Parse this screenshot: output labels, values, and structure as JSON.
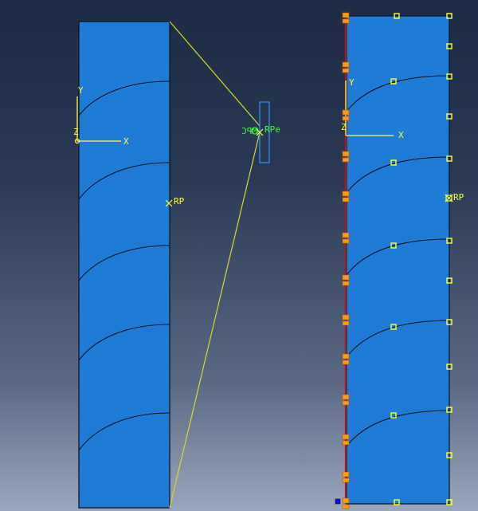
{
  "viewport": {
    "colors": {
      "part_fill": "#1f7bd6",
      "part_edge": "#0a0f1a",
      "triad": "#ffff33",
      "connector": "#d8d82a",
      "constraint": "#33ff33",
      "bc_marker": "#ff9a1a",
      "fixed_edge": "#b01818",
      "coupling_node": "#ffff33",
      "wire": "#3c8cff"
    },
    "left_part": {
      "triad": {
        "y_label": "Y",
        "x_label": "X",
        "z_label": "Z"
      },
      "reference_point_label": "RP"
    },
    "wire_feature": {
      "constraint_label": "MPC",
      "reference_point_label": "RPe"
    },
    "right_part": {
      "triad": {
        "y_label": "Y",
        "x_label": "X",
        "z_label": "Z"
      },
      "reference_point_label": "RP"
    },
    "icons": {
      "triad": "axis-triad-icon",
      "rp": "reference-point-icon",
      "bc": "boundary-condition-icon",
      "coupling": "coupling-node-icon"
    }
  }
}
